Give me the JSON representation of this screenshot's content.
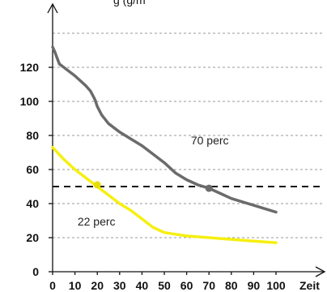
{
  "chart_data": {
    "type": "line",
    "title": "",
    "top_label_partial": "g (g/m",
    "xlabel": "Zeit",
    "ylabel": "",
    "xlim": [
      0,
      100
    ],
    "ylim": [
      0,
      140
    ],
    "x_ticks": [
      0,
      10,
      20,
      30,
      40,
      50,
      60,
      70,
      80,
      90,
      100
    ],
    "y_ticks": [
      0,
      20,
      40,
      60,
      80,
      100,
      120
    ],
    "grid": "horizontal-dashed",
    "threshold": 50,
    "series": [
      {
        "color": "#6b6b6b",
        "points": [
          [
            0,
            132
          ],
          [
            1,
            129
          ],
          [
            3,
            122
          ],
          [
            5,
            120
          ],
          [
            10,
            115
          ],
          [
            15,
            109
          ],
          [
            17,
            106
          ],
          [
            19,
            101
          ],
          [
            20,
            97
          ],
          [
            22,
            92
          ],
          [
            25,
            87
          ],
          [
            30,
            82
          ],
          [
            35,
            78
          ],
          [
            40,
            74
          ],
          [
            45,
            69
          ],
          [
            50,
            64
          ],
          [
            55,
            58
          ],
          [
            60,
            54
          ],
          [
            65,
            51
          ],
          [
            70,
            49
          ],
          [
            75,
            46
          ],
          [
            80,
            43
          ],
          [
            85,
            41
          ],
          [
            90,
            39
          ],
          [
            95,
            37
          ],
          [
            100,
            35
          ]
        ]
      },
      {
        "color": "#f6ef10",
        "points": [
          [
            0,
            73
          ],
          [
            5,
            66
          ],
          [
            10,
            60
          ],
          [
            15,
            55
          ],
          [
            20,
            50
          ],
          [
            25,
            45
          ],
          [
            30,
            40
          ],
          [
            35,
            36
          ],
          [
            40,
            31
          ],
          [
            45,
            26
          ],
          [
            50,
            23
          ],
          [
            55,
            22
          ],
          [
            60,
            21
          ],
          [
            70,
            20
          ],
          [
            80,
            19
          ],
          [
            90,
            18
          ],
          [
            100,
            17
          ]
        ]
      }
    ],
    "markers": [
      {
        "x": 20,
        "y": 51,
        "color": "#e6dd00",
        "label": "22 perc"
      },
      {
        "x": 70,
        "y": 49,
        "color": "#6b6b6b",
        "label": "70 perc"
      }
    ]
  }
}
